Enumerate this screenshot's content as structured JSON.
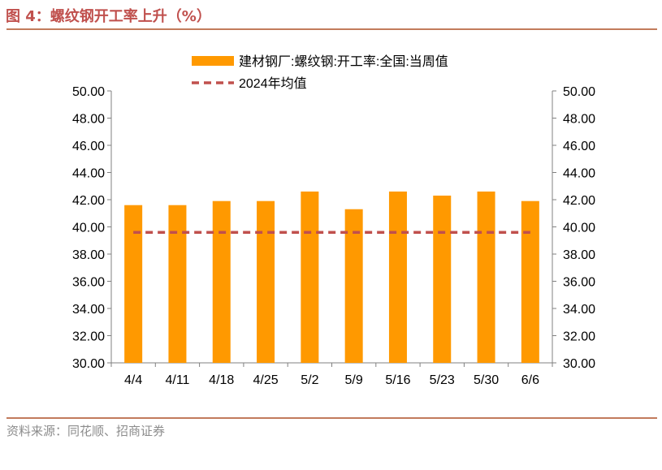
{
  "figure": {
    "title": "图 4：螺纹钢开工率上升（%）",
    "source": "资料来源：同花顺、招商证券"
  },
  "colors": {
    "bar": "#ff9900",
    "line": "#c0504d",
    "title": "#c0504d",
    "rule": "#c27b5c",
    "axis": "#808080"
  },
  "chart_data": {
    "type": "bar",
    "title": "",
    "xlabel": "",
    "ylabel": "",
    "categories": [
      "4/4",
      "4/11",
      "4/18",
      "4/25",
      "5/2",
      "5/9",
      "5/16",
      "5/23",
      "5/30",
      "6/6"
    ],
    "series": [
      {
        "name": "建材钢厂:螺纹钢:开工率:全国:当周值",
        "type": "bar",
        "values": [
          41.6,
          41.6,
          41.9,
          41.9,
          42.6,
          41.3,
          42.6,
          42.3,
          42.6,
          41.9
        ]
      },
      {
        "name": "2024年均值",
        "type": "line",
        "style": "dashed",
        "values": [
          39.6,
          39.6,
          39.6,
          39.6,
          39.6,
          39.6,
          39.6,
          39.6,
          39.6,
          39.6
        ]
      }
    ],
    "ylim": [
      30,
      50
    ],
    "yticks": [
      "30.00",
      "32.00",
      "34.00",
      "36.00",
      "38.00",
      "40.00",
      "42.00",
      "44.00",
      "46.00",
      "48.00",
      "50.00"
    ],
    "y2ticks": [
      "30.00",
      "32.00",
      "34.00",
      "36.00",
      "38.00",
      "40.00",
      "42.00",
      "44.00",
      "46.00",
      "48.00",
      "50.00"
    ],
    "legend_position": "top-center",
    "grid": false
  }
}
